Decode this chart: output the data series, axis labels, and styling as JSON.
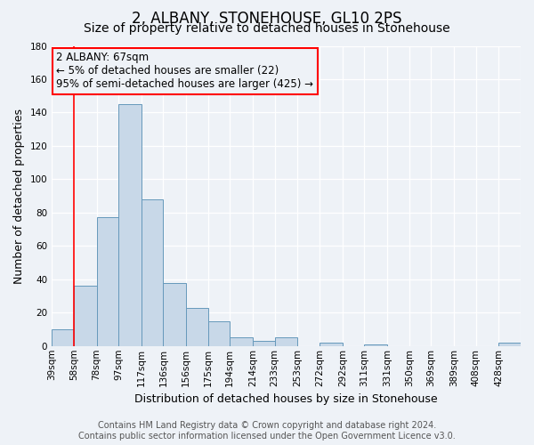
{
  "title": "2, ALBANY, STONEHOUSE, GL10 2PS",
  "subtitle": "Size of property relative to detached houses in Stonehouse",
  "xlabel": "Distribution of detached houses by size in Stonehouse",
  "ylabel": "Number of detached properties",
  "bar_labels": [
    "39sqm",
    "58sqm",
    "78sqm",
    "97sqm",
    "117sqm",
    "136sqm",
    "156sqm",
    "175sqm",
    "194sqm",
    "214sqm",
    "233sqm",
    "253sqm",
    "272sqm",
    "292sqm",
    "311sqm",
    "331sqm",
    "350sqm",
    "369sqm",
    "389sqm",
    "408sqm",
    "428sqm"
  ],
  "bar_heights": [
    10,
    36,
    77,
    145,
    88,
    38,
    23,
    15,
    5,
    3,
    5,
    0,
    2,
    0,
    1,
    0,
    0,
    0,
    0,
    0,
    2
  ],
  "bar_color": "#c8d8e8",
  "bar_edge_color": "#6699bb",
  "ylim": [
    0,
    180
  ],
  "yticks": [
    0,
    20,
    40,
    60,
    80,
    100,
    120,
    140,
    160,
    180
  ],
  "annotation_line1": "2 ALBANY: 67sqm",
  "annotation_line2": "← 5% of detached houses are smaller (22)",
  "annotation_line3": "95% of semi-detached houses are larger (425) →",
  "red_line_bin_edge": 58,
  "bin_edges": [
    39,
    58,
    78,
    97,
    117,
    136,
    156,
    175,
    194,
    214,
    233,
    253,
    272,
    292,
    311,
    331,
    350,
    369,
    389,
    408,
    428,
    447
  ],
  "footer_line1": "Contains HM Land Registry data © Crown copyright and database right 2024.",
  "footer_line2": "Contains public sector information licensed under the Open Government Licence v3.0.",
  "bg_color": "#eef2f7",
  "grid_color": "#ffffff",
  "title_fontsize": 12,
  "subtitle_fontsize": 10,
  "axis_label_fontsize": 9,
  "tick_fontsize": 7.5,
  "annotation_fontsize": 8.5,
  "footer_fontsize": 7
}
